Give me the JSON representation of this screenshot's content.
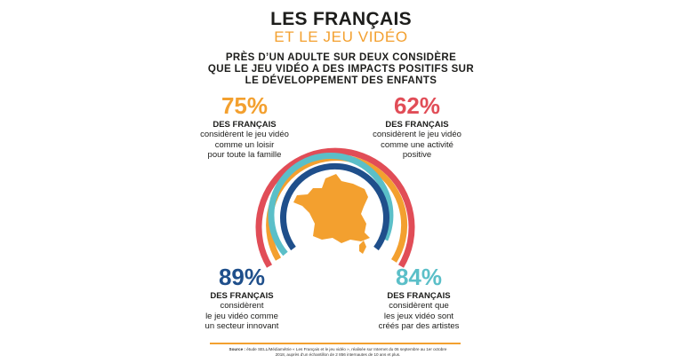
{
  "colors": {
    "orange": "#f3a02f",
    "red": "#e14d57",
    "navy": "#1f4f8b",
    "teal": "#5bbfc8",
    "dark": "#1d1d1b"
  },
  "title": {
    "line1": "LES FRANÇAIS",
    "line2": "ET LE JEU VIDÉO"
  },
  "subtitle": {
    "line1": "PRÈS D’UN ADULTE SUR DEUX CONSIDÈRE",
    "line2": "QUE LE JEU VIDÉO A DES IMPACTS POSITIFS SUR",
    "line3": "LE DÉVELOPPEMENT DES ENFANTS"
  },
  "stats": {
    "s75": {
      "value": "75%",
      "who": "DES FRANÇAIS",
      "lines": [
        "considèrent le jeu vidéo",
        "comme un loisir",
        "pour toute la famille"
      ]
    },
    "s62": {
      "value": "62%",
      "who": "DES FRANÇAIS",
      "lines": [
        "considèrent le jeu vidéo",
        "comme une activité",
        "positive"
      ]
    },
    "s89": {
      "value": "89%",
      "who": "DES FRANÇAIS",
      "lines": [
        "considèrent",
        "le jeu vidéo comme",
        "un secteur innovant"
      ]
    },
    "s84": {
      "value": "84%",
      "who": "DES FRANÇAIS",
      "lines": [
        "considèrent que",
        "les jeux vidéo sont",
        "créés par des artistes"
      ]
    }
  },
  "arc_levels": {
    "orange": 75,
    "red": 62,
    "navy": 89,
    "teal": 84
  },
  "source": {
    "label": "Source :",
    "line1": "étude SELL/Médiamétrie « Les Français et le jeu vidéo », réalisée sur Internet du 06 septembre au 1er octobre",
    "line2": "2018, auprès d’un échantillon de 2 856 internautes de 10 ans et plus."
  }
}
